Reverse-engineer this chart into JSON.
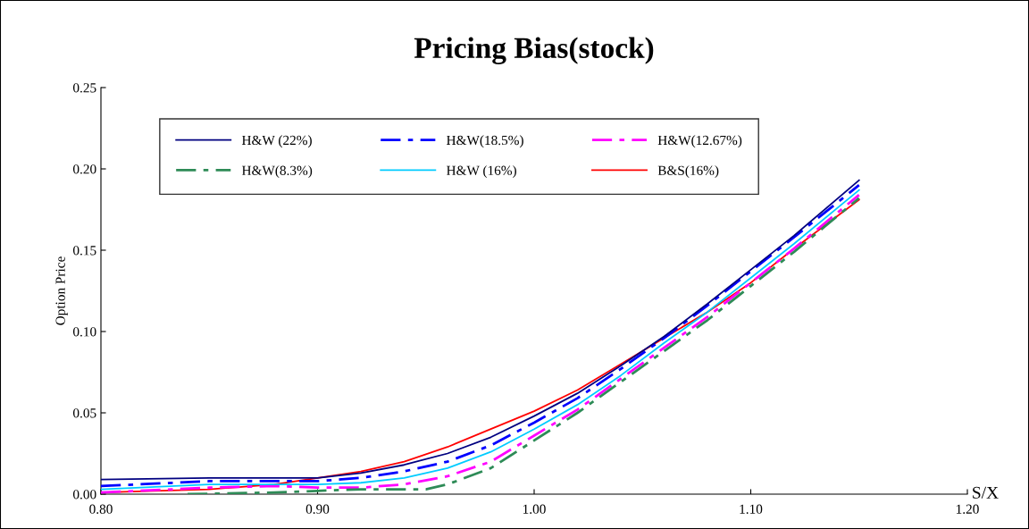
{
  "chart_data": {
    "type": "line",
    "title": "Pricing Bias(stock)",
    "xlabel": "S/X",
    "ylabel": "Option Price",
    "x": [
      0.8,
      0.85,
      0.88,
      0.9,
      0.92,
      0.94,
      0.96,
      0.98,
      1.0,
      1.02,
      1.04,
      1.06,
      1.08,
      1.1,
      1.12,
      1.15
    ],
    "xlim": [
      0.8,
      1.2
    ],
    "xticks": [
      {
        "value": 0.8,
        "label": "0.80"
      },
      {
        "value": 0.9,
        "label": "0.90"
      },
      {
        "value": 1.0,
        "label": "1.00"
      },
      {
        "value": 1.1,
        "label": "1.10"
      },
      {
        "value": 1.2,
        "label": "1.20"
      }
    ],
    "ylim": [
      0,
      0.25
    ],
    "yticks": [
      {
        "value": 0,
        "label": "0.00"
      },
      {
        "value": 0.05,
        "label": "0.05"
      },
      {
        "value": 0.1,
        "label": "0.10"
      },
      {
        "value": 0.15,
        "label": "0.15"
      },
      {
        "value": 0.2,
        "label": "0.20"
      },
      {
        "value": 0.25,
        "label": "0.25"
      }
    ],
    "grid": false,
    "legend": "top left",
    "marker": "none",
    "series": [
      {
        "name": "H&W (22%)",
        "color": "#000080",
        "line_style": "solid",
        "values": [
          0.009,
          0.01,
          0.01,
          0.01,
          0.013,
          0.018,
          0.025,
          0.035,
          0.048,
          0.062,
          0.079,
          0.097,
          0.117,
          0.138,
          0.159,
          0.193
        ]
      },
      {
        "name": "H&W(8.3%)",
        "color": "#2e8b57",
        "line_style": "dashed",
        "x": [
          0.84,
          0.88,
          0.9,
          0.92,
          0.95,
          0.96,
          0.98,
          1.0,
          1.02,
          1.04,
          1.06,
          1.08,
          1.1,
          1.12,
          1.15
        ],
        "values": [
          0.0,
          0.001,
          0.002,
          0.003,
          0.003,
          0.006,
          0.016,
          0.033,
          0.05,
          0.069,
          0.088,
          0.107,
          0.128,
          0.149,
          0.182
        ]
      },
      {
        "name": "H&W(18.5%)",
        "color": "#0000ff",
        "line_style": "dashed",
        "values": [
          0.005,
          0.008,
          0.008,
          0.008,
          0.01,
          0.014,
          0.02,
          0.03,
          0.044,
          0.059,
          0.077,
          0.096,
          0.116,
          0.137,
          0.158,
          0.19
        ]
      },
      {
        "name": "H&W (16%)",
        "color": "#00ccff",
        "line_style": "solid",
        "values": [
          0.003,
          0.006,
          0.006,
          0.006,
          0.007,
          0.01,
          0.016,
          0.026,
          0.04,
          0.055,
          0.073,
          0.093,
          0.112,
          0.133,
          0.154,
          0.187
        ]
      },
      {
        "name": "H&W(12.67%)",
        "color": "#ff00ff",
        "line_style": "dashed",
        "values": [
          0.001,
          0.004,
          0.005,
          0.004,
          0.004,
          0.006,
          0.011,
          0.02,
          0.036,
          0.052,
          0.071,
          0.09,
          0.109,
          0.13,
          0.151,
          0.184
        ]
      },
      {
        "name": "B&S(16%)",
        "color": "#ff0000",
        "line_style": "solid",
        "values": [
          0.001,
          0.003,
          0.006,
          0.01,
          0.014,
          0.02,
          0.029,
          0.04,
          0.051,
          0.064,
          0.08,
          0.096,
          0.112,
          0.13,
          0.151,
          0.181
        ]
      }
    ]
  }
}
